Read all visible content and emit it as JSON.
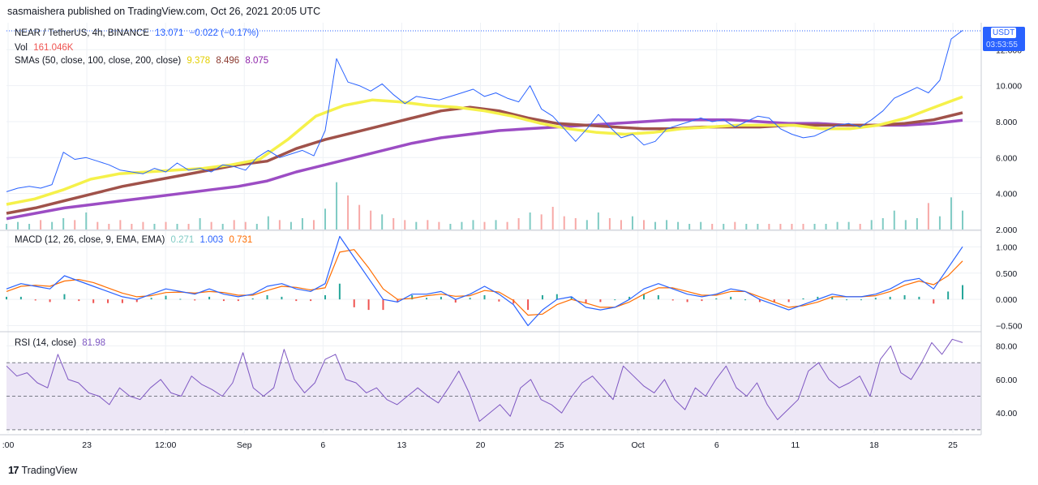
{
  "publisher": "sasmaishera published on TradingView.com, Oct 26, 2021 20:05 UTC",
  "footer_brand": "TradingView",
  "legend": {
    "symbol": "NEAR / TetherUS, 4h, BINANCE",
    "last": "13.071",
    "change": "−0.022 (−0.17%)",
    "vol_label": "Vol",
    "vol_value": "161.046K",
    "sma_label": "SMAs (50, close, 100, close, 200, close)",
    "sma50": "9.378",
    "sma100": "8.496",
    "sma200": "8.075",
    "macd_label": "MACD (12, 26, close, 9, EMA, EMA)",
    "macd_hist": "0.271",
    "macd_line": "1.003",
    "macd_signal": "0.731",
    "rsi_label": "RSI (14, close)",
    "rsi_value": "81.98"
  },
  "price_badge": {
    "unit": "USDT",
    "value": "13.071",
    "timer": "03:53:55"
  },
  "colors": {
    "price": "#2962ff",
    "sma50": "#f5f14a",
    "sma100": "#a0524a",
    "sma200": "#9c4dc4",
    "macd": "#2962ff",
    "signal": "#ff6d00",
    "hist_up": "#26a69a",
    "hist_down": "#ef5350",
    "rsi": "#7e57c2",
    "rsi_band": "#ede7f6"
  },
  "chart_data": [
    {
      "type": "line",
      "title": "NEAR / TetherUS, 4h, BINANCE",
      "x_ticks": [
        ":00",
        "23",
        "12:00",
        "Sep",
        "6",
        "13",
        "20",
        "25",
        "Oct",
        "6",
        "11",
        "18",
        "25"
      ],
      "y_ticks": [
        "12.000",
        "10.000",
        "8.000",
        "6.000",
        "4.000",
        "2.000"
      ],
      "ylim": [
        2.0,
        13.5
      ],
      "series": [
        {
          "name": "NEAR / TetherUS",
          "values": [
            4.1,
            4.3,
            4.4,
            4.3,
            4.5,
            6.3,
            5.9,
            6.0,
            5.8,
            5.6,
            5.3,
            5.2,
            5.1,
            5.4,
            5.2,
            5.7,
            5.3,
            5.4,
            5.2,
            5.6,
            5.5,
            5.3,
            6.0,
            6.4,
            6.0,
            6.2,
            6.4,
            6.1,
            7.5,
            11.5,
            10.2,
            10.0,
            9.7,
            10.1,
            9.5,
            9.0,
            9.4,
            9.3,
            9.2,
            9.4,
            9.6,
            9.8,
            9.4,
            9.6,
            9.3,
            9.1,
            10.0,
            8.7,
            8.3,
            7.6,
            6.9,
            7.6,
            8.4,
            7.7,
            7.1,
            7.3,
            6.7,
            6.9,
            7.6,
            7.8,
            8.0,
            8.2,
            8.0,
            8.1,
            7.7,
            8.0,
            8.3,
            8.2,
            7.6,
            7.3,
            7.1,
            7.2,
            7.5,
            7.8,
            7.9,
            7.7,
            8.1,
            8.6,
            9.3,
            9.6,
            9.9,
            9.6,
            10.3,
            12.6,
            13.07
          ]
        },
        {
          "name": "SMA 50",
          "values": [
            3.4,
            3.7,
            4.2,
            4.8,
            5.1,
            5.2,
            5.3,
            5.4,
            5.6,
            5.9,
            7.0,
            8.3,
            8.9,
            9.2,
            9.1,
            8.9,
            8.8,
            8.6,
            8.3,
            7.9,
            7.6,
            7.4,
            7.3,
            7.4,
            7.6,
            7.7,
            7.8,
            7.8,
            7.8,
            7.6,
            7.6,
            7.8,
            8.2,
            8.8,
            9.38
          ]
        },
        {
          "name": "SMA 100",
          "values": [
            2.9,
            3.2,
            3.6,
            4.0,
            4.4,
            4.7,
            5.0,
            5.3,
            5.6,
            5.8,
            6.5,
            7.0,
            7.4,
            7.8,
            8.2,
            8.6,
            8.8,
            8.6,
            8.2,
            7.9,
            7.8,
            7.7,
            7.6,
            7.6,
            7.7,
            7.7,
            7.7,
            7.8,
            7.8,
            7.8,
            7.8,
            7.9,
            8.1,
            8.496
          ]
        },
        {
          "name": "SMA 200",
          "values": [
            2.6,
            2.9,
            3.2,
            3.4,
            3.6,
            3.8,
            4.0,
            4.2,
            4.4,
            4.7,
            5.2,
            5.6,
            6.0,
            6.4,
            6.8,
            7.1,
            7.3,
            7.5,
            7.6,
            7.7,
            7.8,
            7.9,
            8.0,
            8.1,
            8.1,
            8.1,
            8.0,
            7.9,
            7.9,
            7.8,
            7.8,
            7.8,
            7.9,
            8.075
          ]
        }
      ]
    },
    {
      "type": "bar",
      "title": "Vol",
      "series": [
        {
          "name": "Vol",
          "values": [
            0.3,
            0.4,
            0.3,
            0.5,
            0.4,
            0.6,
            0.5,
            0.9,
            0.4,
            0.3,
            0.5,
            0.3,
            0.4,
            0.3,
            0.4,
            0.3,
            0.3,
            0.6,
            0.4,
            0.3,
            0.5,
            0.4,
            0.3,
            0.7,
            0.5,
            0.4,
            0.6,
            0.5,
            1.1,
            2.5,
            1.8,
            1.3,
            1.0,
            0.8,
            0.6,
            0.5,
            0.4,
            0.5,
            0.4,
            0.3,
            0.4,
            0.5,
            0.4,
            0.5,
            0.4,
            0.6,
            0.9,
            0.8,
            1.2,
            0.7,
            0.6,
            0.5,
            0.9,
            0.6,
            0.5,
            0.7,
            0.5,
            0.4,
            0.5,
            0.4,
            0.3,
            0.4,
            0.3,
            0.3,
            0.4,
            0.3,
            0.3,
            0.3,
            0.3,
            0.3,
            0.3,
            0.3,
            0.3,
            0.4,
            0.4,
            0.3,
            0.5,
            0.6,
            1.0,
            0.5,
            0.6,
            1.4,
            0.7,
            1.7,
            1.0
          ]
        }
      ]
    },
    {
      "type": "line",
      "title": "MACD (12, 26, close, 9, EMA, EMA)",
      "y_ticks": [
        "1.000",
        "0.500",
        "0.000",
        "−0.500"
      ],
      "ylim": [
        -0.6,
        1.3
      ],
      "series": [
        {
          "name": "MACD",
          "values": [
            0.2,
            0.3,
            0.25,
            0.2,
            0.45,
            0.35,
            0.25,
            0.15,
            0.05,
            0.0,
            0.1,
            0.2,
            0.15,
            0.1,
            0.2,
            0.1,
            0.05,
            0.1,
            0.25,
            0.3,
            0.2,
            0.15,
            0.3,
            1.2,
            0.8,
            0.4,
            0.0,
            -0.05,
            0.1,
            0.1,
            0.15,
            0.0,
            0.1,
            0.25,
            0.1,
            -0.1,
            -0.5,
            -0.2,
            0.0,
            0.05,
            -0.15,
            -0.2,
            -0.15,
            0.0,
            0.2,
            0.3,
            0.2,
            0.1,
            0.05,
            0.1,
            0.2,
            0.15,
            0.0,
            -0.1,
            -0.2,
            -0.1,
            0.0,
            0.1,
            0.05,
            0.05,
            0.1,
            0.2,
            0.35,
            0.4,
            0.2,
            0.6,
            1.003
          ]
        },
        {
          "name": "Signal",
          "values": [
            0.15,
            0.25,
            0.27,
            0.25,
            0.35,
            0.38,
            0.32,
            0.22,
            0.12,
            0.05,
            0.07,
            0.13,
            0.14,
            0.12,
            0.15,
            0.13,
            0.08,
            0.08,
            0.17,
            0.25,
            0.23,
            0.18,
            0.22,
            0.9,
            0.95,
            0.6,
            0.2,
            0.0,
            0.02,
            0.07,
            0.1,
            0.06,
            0.07,
            0.17,
            0.14,
            -0.02,
            -0.3,
            -0.28,
            -0.1,
            0.0,
            -0.07,
            -0.15,
            -0.15,
            -0.05,
            0.1,
            0.22,
            0.22,
            0.15,
            0.08,
            0.08,
            0.15,
            0.15,
            0.05,
            -0.05,
            -0.15,
            -0.12,
            -0.05,
            0.05,
            0.05,
            0.05,
            0.07,
            0.15,
            0.27,
            0.35,
            0.28,
            0.45,
            0.731
          ]
        }
      ]
    },
    {
      "type": "line",
      "title": "RSI (14, close)",
      "y_ticks": [
        "80.00",
        "60.00",
        "40.00"
      ],
      "ylim": [
        28,
        88
      ],
      "series": [
        {
          "name": "RSI",
          "values": [
            68,
            62,
            64,
            58,
            55,
            75,
            60,
            58,
            52,
            50,
            45,
            55,
            50,
            48,
            55,
            60,
            52,
            50,
            62,
            57,
            54,
            50,
            58,
            76,
            55,
            50,
            55,
            78,
            60,
            52,
            58,
            72,
            75,
            60,
            58,
            52,
            55,
            48,
            45,
            50,
            55,
            50,
            46,
            55,
            65,
            52,
            35,
            40,
            45,
            38,
            55,
            60,
            48,
            45,
            40,
            50,
            58,
            62,
            55,
            48,
            68,
            62,
            56,
            52,
            60,
            48,
            42,
            55,
            50,
            60,
            68,
            55,
            50,
            58,
            45,
            36,
            42,
            48,
            65,
            70,
            60,
            55,
            58,
            62,
            50,
            72,
            80,
            64,
            60,
            70,
            82,
            75,
            84,
            81.98
          ]
        }
      ]
    }
  ]
}
